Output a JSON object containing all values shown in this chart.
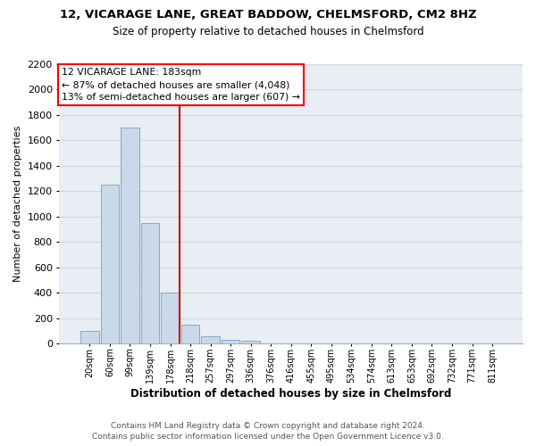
{
  "title_line1": "12, VICARAGE LANE, GREAT BADDOW, CHELMSFORD, CM2 8HZ",
  "title_line2": "Size of property relative to detached houses in Chelmsford",
  "xlabel": "Distribution of detached houses by size in Chelmsford",
  "ylabel": "Number of detached properties",
  "categories": [
    "20sqm",
    "60sqm",
    "99sqm",
    "139sqm",
    "178sqm",
    "218sqm",
    "257sqm",
    "297sqm",
    "336sqm",
    "376sqm",
    "416sqm",
    "455sqm",
    "495sqm",
    "534sqm",
    "574sqm",
    "613sqm",
    "653sqm",
    "692sqm",
    "732sqm",
    "771sqm",
    "811sqm"
  ],
  "values": [
    100,
    1250,
    1700,
    950,
    400,
    150,
    60,
    30,
    20,
    3,
    1,
    1,
    0,
    0,
    0,
    0,
    0,
    0,
    0,
    0,
    0
  ],
  "bar_color": "#c9d9ea",
  "bar_edge_color": "#7aa0bb",
  "vline_color": "#cc0000",
  "annotation_text_line1": "12 VICARAGE LANE: 183sqm",
  "annotation_text_line2": "← 87% of detached houses are smaller (4,048)",
  "annotation_text_line3": "13% of semi-detached houses are larger (607) →",
  "ylim_max": 2200,
  "yticks": [
    0,
    200,
    400,
    600,
    800,
    1000,
    1200,
    1400,
    1600,
    1800,
    2000,
    2200
  ],
  "grid_color": "#d0d8e0",
  "plot_bg_color": "#e8eef4",
  "footer_line1": "Contains HM Land Registry data © Crown copyright and database right 2024.",
  "footer_line2": "Contains public sector information licensed under the Open Government Licence v3.0."
}
